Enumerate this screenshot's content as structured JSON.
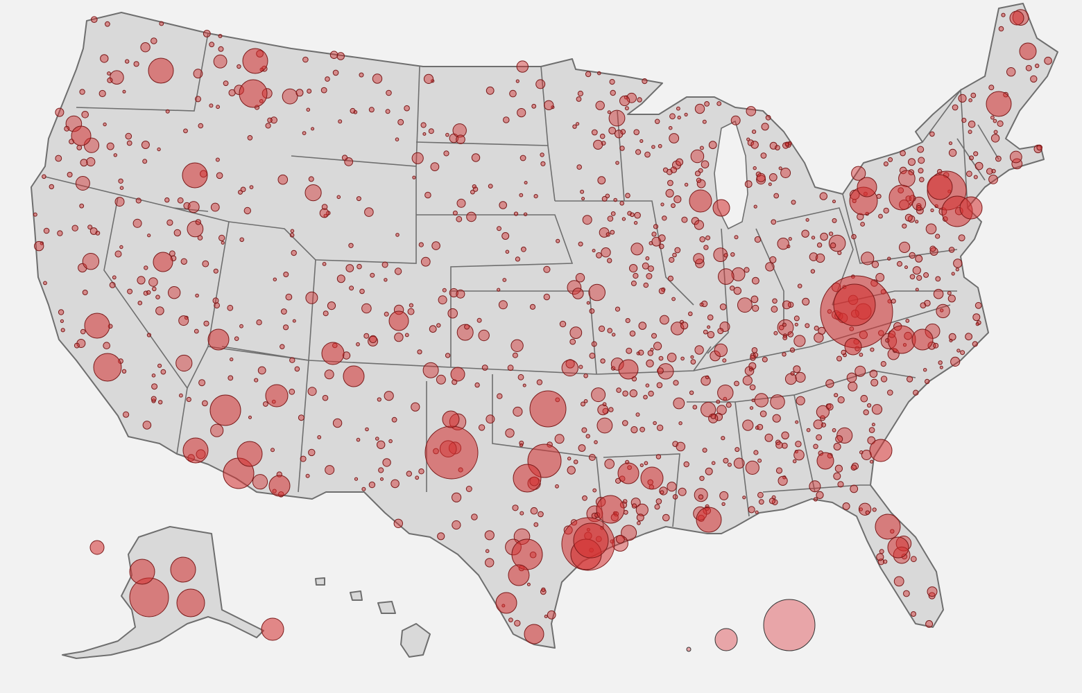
{
  "map": {
    "region": "United States",
    "background_color": "#f2f2f2",
    "land_color": "#d9d9d9",
    "border_color": "#6e6e6e",
    "bubble_color": "#d32f2f",
    "bubble_opacity": 0.45,
    "legend_bubble_color": "#e8a5a8",
    "legend_bubble_count": 3
  }
}
